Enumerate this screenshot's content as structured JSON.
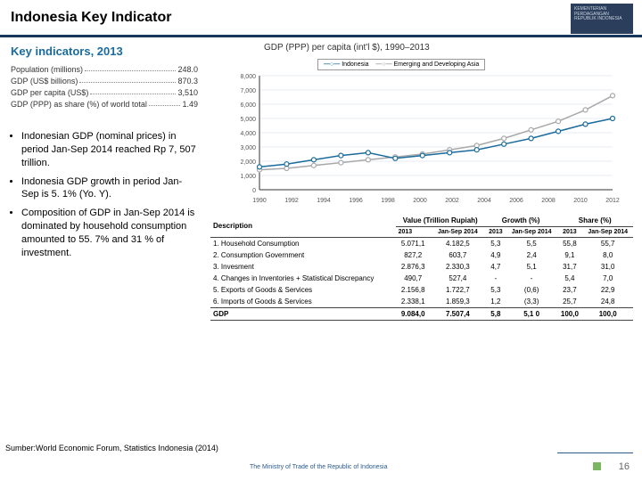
{
  "title": "Indonesia Key Indicator",
  "logo_text": "KEMENTERIAN PERDAGANGAN REPUBLIK INDONESIA",
  "key_indicators": {
    "heading": "Key indicators, 2013",
    "rows": [
      {
        "label": "Population (millions)",
        "value": "248.0"
      },
      {
        "label": "GDP (US$ billions)",
        "value": "870.3"
      },
      {
        "label": "GDP per capita (US$)",
        "value": "3,510"
      },
      {
        "label": "GDP (PPP) as share (%) of world total",
        "value": "1.49"
      }
    ]
  },
  "bullets": [
    "Indonesian GDP (nominal prices) in period Jan-Sep 2014 reached Rp 7, 507 trillion.",
    "Indonesia GDP growth in period Jan-Sep is 5. 1% (Yo. Y).",
    "Composition of GDP in Jan-Sep 2014 is dominated by household consumption amounted to 55. 7% and 31 % of investment."
  ],
  "chart": {
    "title": "GDP (PPP) per capita (int'l $), 1990–2013",
    "legend": [
      "Indonesia",
      "Emerging and Developing Asia"
    ],
    "x_years": [
      "1990",
      "1992",
      "1994",
      "1996",
      "1998",
      "2000",
      "2002",
      "2004",
      "2006",
      "2008",
      "2010",
      "2012"
    ],
    "y_ticks": [
      "0",
      "1,000",
      "2,000",
      "3,000",
      "4,000",
      "5,000",
      "6,000",
      "7,000",
      "8,000"
    ],
    "y_max": 8000,
    "series": {
      "indonesia": {
        "color": "#1a6b9c",
        "marker": "circle",
        "values": [
          1600,
          1800,
          2100,
          2400,
          2600,
          2200,
          2400,
          2600,
          2800,
          3200,
          3600,
          4100,
          4600,
          5000
        ]
      },
      "emerging": {
        "color": "#a8a8a8",
        "marker": "circle",
        "values": [
          1400,
          1500,
          1700,
          1900,
          2100,
          2300,
          2500,
          2800,
          3100,
          3600,
          4200,
          4800,
          5600,
          6600
        ]
      }
    },
    "grid_color": "#cfd8e3",
    "bg": "#ffffff"
  },
  "table": {
    "header1": [
      "Description",
      "Value (Trillion Rupiah)",
      "Growth (%)",
      "Share (%)"
    ],
    "header2": [
      "",
      "2013",
      "Jan-Sep 2014",
      "2013",
      "Jan-Sep 2014",
      "2013",
      "Jan-Sep 2014"
    ],
    "rows": [
      [
        "1. Household Consumption",
        "5.071,1",
        "4.182,5",
        "5,3",
        "5,5",
        "55,8",
        "55,7"
      ],
      [
        "2. Consumption Government",
        "827,2",
        "603,7",
        "4,9",
        "2,4",
        "9,1",
        "8,0"
      ],
      [
        "3. Invesment",
        "2.876,3",
        "2.330,3",
        "4,7",
        "5,1",
        "31,7",
        "31,0"
      ],
      [
        "4. Changes in Inventories + Statistical Discrepancy",
        "490,7",
        "527,4",
        "-",
        "-",
        "5,4",
        "7,0"
      ],
      [
        "5. Exports of Goods & Services",
        "2.156,8",
        "1.722,7",
        "5,3",
        "(0,6)",
        "23,7",
        "22,9"
      ],
      [
        "6. Imports of Goods & Services",
        "2.338,1",
        "1.859,3",
        "1,2",
        "(3,3)",
        "25,7",
        "24,8"
      ]
    ],
    "gdp_row": [
      "GDP",
      "9.084,0",
      "7.507,4",
      "5,8",
      "5,1 0",
      "100,0",
      "100,0"
    ]
  },
  "source": "Sumber:World Economic Forum, Statistics Indonesia (2014)",
  "footer": {
    "credit": "The Ministry of Trade of the Republic of Indonesia",
    "page": "16"
  }
}
